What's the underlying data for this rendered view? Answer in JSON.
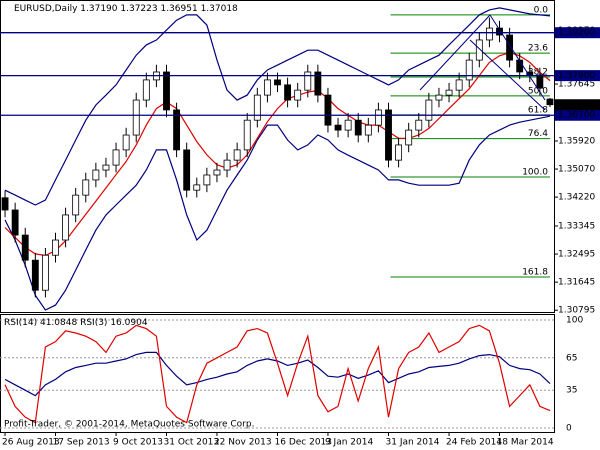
{
  "chart_data": [
    {
      "type": "candlestick",
      "title": "EURUSD,Daily",
      "last_labels": [
        "1.37190",
        "1.37223",
        "1.36951",
        "1.37018"
      ],
      "categories": [
        "26 Aug 2013",
        null,
        null,
        null,
        null,
        "17 Sep 2013",
        null,
        null,
        null,
        null,
        null,
        "9 Oct 2013",
        null,
        null,
        null,
        null,
        "31 Oct 2013",
        null,
        null,
        null,
        null,
        "22 Nov 2013",
        null,
        null,
        null,
        null,
        null,
        "16 Dec 2013",
        null,
        null,
        null,
        null,
        "9 Jan 2014",
        null,
        null,
        null,
        null,
        null,
        "31 Jan 2014",
        null,
        null,
        null,
        null,
        null,
        "24 Feb 2014",
        null,
        null,
        null,
        null,
        "18 Mar 2014",
        null,
        null,
        null,
        null,
        null
      ],
      "open": [
        1.342,
        1.3383,
        1.3307,
        1.3231,
        1.314,
        1.3246,
        1.3292,
        1.3368,
        1.3428,
        1.3474,
        1.3504,
        1.3519,
        1.3565,
        1.361,
        1.3716,
        1.3777,
        1.3801,
        1.3686,
        1.3565,
        1.3443,
        1.3459,
        1.3489,
        1.3504,
        1.3534,
        1.3565,
        1.3655,
        1.3731,
        1.3777,
        1.3762,
        1.3716,
        1.3746,
        1.3801,
        1.3731,
        1.364,
        1.3625,
        1.3655,
        1.361,
        1.364,
        1.3686,
        1.3534,
        1.358,
        1.3625,
        1.3655,
        1.3716,
        1.3731,
        1.3746,
        1.3777,
        1.3837,
        1.3898,
        1.3934,
        1.3913,
        1.3837,
        1.3801,
        1.3792,
        1.3719
      ],
      "high": [
        1.3442,
        1.3405,
        1.3329,
        1.3253,
        1.3268,
        1.3314,
        1.339,
        1.345,
        1.3496,
        1.3526,
        1.3541,
        1.3587,
        1.3632,
        1.3738,
        1.3799,
        1.3823,
        1.3823,
        1.3708,
        1.3587,
        1.3481,
        1.3511,
        1.3526,
        1.3556,
        1.3587,
        1.3677,
        1.3753,
        1.3799,
        1.3799,
        1.3784,
        1.3768,
        1.3823,
        1.3823,
        1.3753,
        1.3662,
        1.3677,
        1.3677,
        1.3662,
        1.3708,
        1.3708,
        1.3602,
        1.3647,
        1.3677,
        1.3738,
        1.3753,
        1.3768,
        1.3799,
        1.3859,
        1.392,
        1.3966,
        1.3956,
        1.3935,
        1.3859,
        1.3823,
        1.3814,
        1.37223
      ],
      "low": [
        1.3361,
        1.3285,
        1.3209,
        1.3118,
        1.3118,
        1.3224,
        1.327,
        1.3346,
        1.3406,
        1.3452,
        1.3482,
        1.3497,
        1.3543,
        1.3588,
        1.3694,
        1.3755,
        1.3664,
        1.3543,
        1.3421,
        1.3421,
        1.3437,
        1.3467,
        1.3482,
        1.3512,
        1.3543,
        1.3633,
        1.3709,
        1.374,
        1.3694,
        1.3694,
        1.3724,
        1.3709,
        1.3618,
        1.3603,
        1.3603,
        1.3588,
        1.3588,
        1.3618,
        1.3512,
        1.3512,
        1.3558,
        1.3603,
        1.3633,
        1.3694,
        1.3709,
        1.3724,
        1.3755,
        1.3815,
        1.3876,
        1.3891,
        1.3815,
        1.3779,
        1.377,
        1.373,
        1.36951
      ],
      "close": [
        1.3383,
        1.3307,
        1.3231,
        1.314,
        1.3246,
        1.3292,
        1.3368,
        1.3428,
        1.3474,
        1.3504,
        1.3519,
        1.3565,
        1.361,
        1.3716,
        1.3777,
        1.3801,
        1.3686,
        1.3565,
        1.3443,
        1.3459,
        1.3489,
        1.3504,
        1.3534,
        1.3565,
        1.3655,
        1.3731,
        1.3777,
        1.3762,
        1.3716,
        1.3746,
        1.3801,
        1.3731,
        1.364,
        1.3625,
        1.3655,
        1.361,
        1.364,
        1.3686,
        1.3534,
        1.358,
        1.3625,
        1.3655,
        1.3716,
        1.3731,
        1.3746,
        1.3777,
        1.3837,
        1.3898,
        1.3934,
        1.3913,
        1.3837,
        1.3801,
        1.3792,
        1.3752,
        1.37018
      ],
      "series": [
        {
          "color": "#000080",
          "values": [
            1.3443,
            1.3428,
            1.3413,
            1.3398,
            1.3413,
            1.3474,
            1.3534,
            1.3595,
            1.3655,
            1.3701,
            1.3731,
            1.3762,
            1.3807,
            1.3852,
            1.3883,
            1.3898,
            1.3928,
            1.3958,
            1.3974,
            1.3974,
            1.3943,
            1.3837,
            1.3746,
            1.3716,
            1.3731,
            1.3777,
            1.3807,
            1.3822,
            1.3837,
            1.3852,
            1.3867,
            1.3867,
            1.3852,
            1.3837,
            1.3822,
            1.3807,
            1.3792,
            1.3777,
            1.3762,
            1.3777,
            1.3807,
            1.3822,
            1.3837,
            1.3852,
            1.3883,
            1.3913,
            1.3943,
            1.3974,
            1.3989,
            1.3995,
            1.3989,
            1.3983,
            1.3977,
            1.3974,
            1.3971
          ]
        },
        {
          "color": "#000080",
          "values": [
            1.3353,
            1.3292,
            1.3216,
            1.3125,
            1.308,
            1.3095,
            1.314,
            1.3201,
            1.3262,
            1.3322,
            1.3368,
            1.3398,
            1.3428,
            1.3458,
            1.3504,
            1.3565,
            1.3565,
            1.3474,
            1.3368,
            1.3292,
            1.3322,
            1.3383,
            1.3443,
            1.3489,
            1.3534,
            1.3595,
            1.364,
            1.364,
            1.3595,
            1.3565,
            1.358,
            1.361,
            1.3595,
            1.3565,
            1.3549,
            1.3534,
            1.3519,
            1.3504,
            1.3474,
            1.3474,
            1.3464,
            1.3458,
            1.3458,
            1.3458,
            1.3458,
            1.3464,
            1.3534,
            1.358,
            1.361,
            1.3625,
            1.364,
            1.3649,
            1.3655,
            1.3661,
            1.3667
          ]
        },
        {
          "color": "#e00000",
          "values": [
            1.333,
            1.33,
            1.327,
            1.325,
            1.3245,
            1.326,
            1.329,
            1.333,
            1.337,
            1.341,
            1.345,
            1.349,
            1.353,
            1.358,
            1.364,
            1.369,
            1.371,
            1.369,
            1.364,
            1.359,
            1.355,
            1.352,
            1.351,
            1.352,
            1.355,
            1.36,
            1.365,
            1.369,
            1.372,
            1.373,
            1.374,
            1.3745,
            1.372,
            1.369,
            1.367,
            1.365,
            1.364,
            1.364,
            1.362,
            1.36,
            1.36,
            1.361,
            1.363,
            1.366,
            1.369,
            1.372,
            1.375,
            1.379,
            1.383,
            1.385,
            1.386,
            1.385,
            1.383,
            1.38,
            1.3775
          ]
        }
      ],
      "ylim": [
        1.3074,
        1.4013
      ],
      "yticks": [
        {
          "value": 1.3927,
          "label": "1.39270"
        },
        {
          "value": 1.37645,
          "label": "1.37645"
        },
        {
          "value": 1.3592,
          "label": "1.35920"
        },
        {
          "value": 1.3507,
          "label": "1.35070"
        },
        {
          "value": 1.3422,
          "label": "1.34220"
        },
        {
          "value": 1.33345,
          "label": "1.33345"
        },
        {
          "value": 1.32495,
          "label": "1.32495"
        },
        {
          "value": 1.31645,
          "label": "1.31645"
        },
        {
          "value": 1.30795,
          "label": "1.30795"
        }
      ],
      "hlines": [
        {
          "value": 1.392,
          "label": "1.39200"
        },
        {
          "value": 1.379,
          "label": "1.37900"
        },
        {
          "value": 1.367,
          "label": "1.36700"
        }
      ],
      "hline_color": "#000080",
      "fib_color": "#008000",
      "fib_levels": [
        "0.0",
        "23.6",
        "38.2",
        "50.0",
        "61.8",
        "76.4",
        "100.0",
        "161.8"
      ],
      "fib_prices": [
        1.3974,
        1.3858,
        1.3786,
        1.37285,
        1.3671,
        1.3599,
        1.3483,
        1.318
      ],
      "copyright": "Profit-Trader, © 2001-2014, MetaQuotes Software Corp."
    },
    {
      "type": "line",
      "series": [
        {
          "name": "RSI(14)",
          "color": "#000080",
          "values": [
            45,
            40,
            35,
            30,
            40,
            45,
            52,
            56,
            58,
            60,
            60,
            62,
            64,
            68,
            70,
            70,
            58,
            48,
            40,
            42,
            45,
            47,
            50,
            52,
            58,
            62,
            64,
            62,
            58,
            60,
            63,
            56,
            48,
            47,
            50,
            46,
            49,
            53,
            42,
            46,
            50,
            52,
            56,
            57,
            58,
            60,
            64,
            67,
            68,
            66,
            58,
            55,
            54,
            50,
            41.0848
          ]
        },
        {
          "name": "RSI(3)",
          "color": "#e00000",
          "values": [
            40,
            20,
            10,
            5,
            75,
            80,
            90,
            88,
            85,
            80,
            70,
            85,
            88,
            95,
            92,
            85,
            20,
            10,
            5,
            40,
            60,
            65,
            70,
            75,
            90,
            92,
            88,
            60,
            30,
            60,
            85,
            30,
            15,
            20,
            55,
            25,
            55,
            75,
            10,
            55,
            70,
            75,
            88,
            70,
            75,
            80,
            92,
            95,
            90,
            60,
            20,
            30,
            40,
            20,
            16.0904
          ]
        }
      ],
      "ylim": [
        0,
        100
      ],
      "yticks": [
        100,
        65,
        35,
        0
      ]
    }
  ]
}
